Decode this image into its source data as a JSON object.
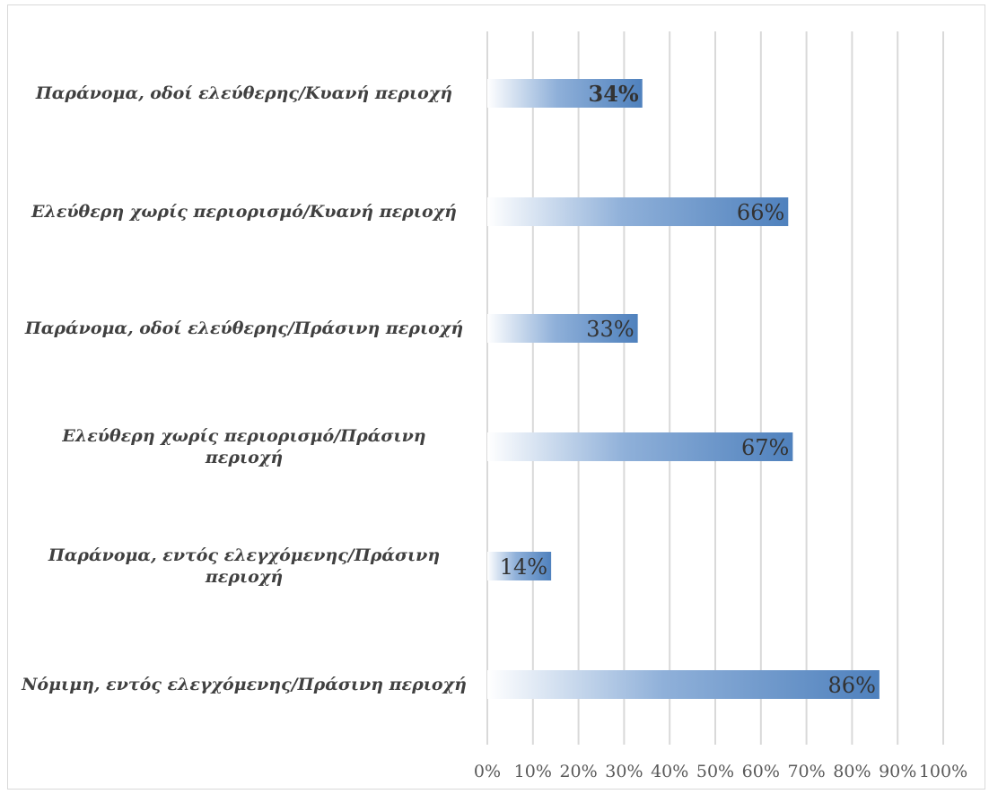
{
  "chart_data": {
    "type": "bar",
    "orientation": "horizontal",
    "categories": [
      "Παράνομα, οδοί ελεύθερης/Κυανή περιοχή",
      "Ελεύθερη χωρίς περιορισμό/Κυανή περιοχή",
      "Παράνομα, οδοί ελεύθερης/Πράσινη περιοχή",
      "Ελεύθερη χωρίς περιορισμό/Πράσινη περιοχή",
      "Παράνομα, εντός ελεγχόμενης/Πράσινη περιοχή",
      "Νόμιμη, εντός ελεγχόμενης/Πράσινη περιοχή"
    ],
    "category_lines": [
      [
        "Παράνομα, οδοί ελεύθερης/Κυανή περιοχή"
      ],
      [
        "Ελεύθερη χωρίς περιορισμό/Κυανή περιοχή"
      ],
      [
        "Παράνομα, οδοί ελεύθερης/Πράσινη περιοχή"
      ],
      [
        "Ελεύθερη χωρίς περιορισμό/Πράσινη",
        "περιοχή"
      ],
      [
        "Παράνομα, εντός ελεγχόμενης/Πράσινη",
        "περιοχή"
      ],
      [
        "Νόμιμη, εντός ελεγχόμενης/Πράσινη περιοχή"
      ]
    ],
    "values": [
      34,
      66,
      33,
      67,
      14,
      86
    ],
    "data_labels": [
      "34%",
      "66%",
      "33%",
      "67%",
      "14%",
      "86%"
    ],
    "xlim": [
      0,
      100
    ],
    "xticks": [
      "0%",
      "10%",
      "20%",
      "30%",
      "40%",
      "50%",
      "60%",
      "70%",
      "80%",
      "90%",
      "100%"
    ],
    "title": "",
    "xlabel": "",
    "ylabel": "",
    "grid": true,
    "legend": "none",
    "bar_color": "#4f81bd",
    "bar_gradient_start": "#ffffff"
  }
}
